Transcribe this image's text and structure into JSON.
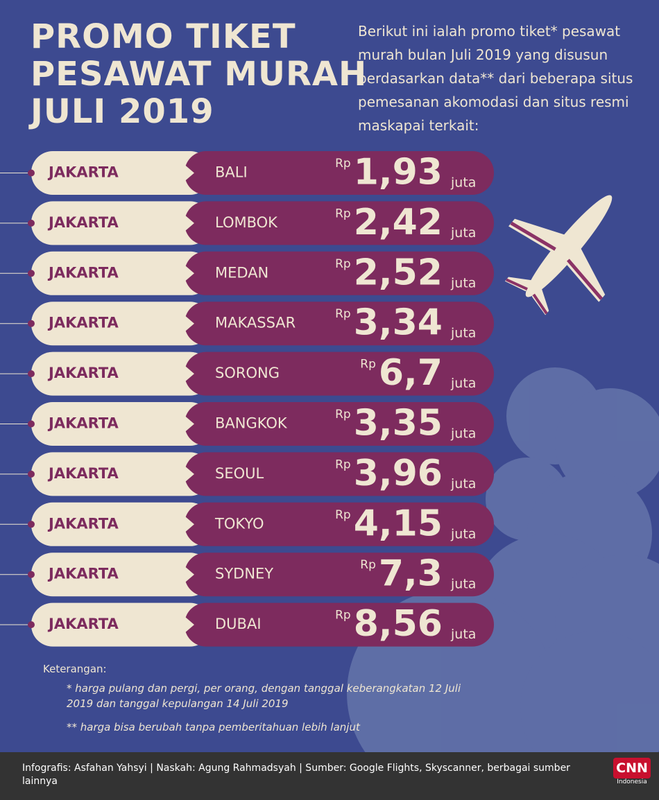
{
  "title": {
    "lines": [
      "PROMO TIKET",
      "PESAWAT MURAH",
      "JULI 2019"
    ]
  },
  "intro": "Berikut ini ialah promo tiket* pesawat murah bulan Juli 2019 yang disusun berdasarkan data** dari beberapa situs pemesanan akomodasi dan situs resmi maskapai terkait:",
  "currency": "Rp",
  "unit": "juta",
  "routes": [
    {
      "origin": "JAKARTA",
      "destination": "BALI",
      "price": "1,93"
    },
    {
      "origin": "JAKARTA",
      "destination": "LOMBOK",
      "price": "2,42"
    },
    {
      "origin": "JAKARTA",
      "destination": "MEDAN",
      "price": "2,52"
    },
    {
      "origin": "JAKARTA",
      "destination": "MAKASSAR",
      "price": "3,34"
    },
    {
      "origin": "JAKARTA",
      "destination": "SORONG",
      "price": "6,7"
    },
    {
      "origin": "JAKARTA",
      "destination": "BANGKOK",
      "price": "3,35"
    },
    {
      "origin": "JAKARTA",
      "destination": "SEOUL",
      "price": "3,96"
    },
    {
      "origin": "JAKARTA",
      "destination": "TOKYO",
      "price": "4,15"
    },
    {
      "origin": "JAKARTA",
      "destination": "SYDNEY",
      "price": "7,3"
    },
    {
      "origin": "JAKARTA",
      "destination": "DUBAI",
      "price": "8,56"
    }
  ],
  "notes": {
    "heading": "Keterangan:",
    "items": [
      "* harga pulang dan pergi, per orang, dengan tanggal keberangkatan 12 Juli 2019 dan tanggal kepulangan 14 Juli 2019",
      "** harga bisa berubah tanpa pemberitahuan lebih lanjut"
    ]
  },
  "footer": {
    "credits": "Infografis: Asfahan Yahsyi | Naskah: Agung Rahmadsyah | Sumber: Google Flights, Skyscanner, berbagai sumber lainnya",
    "logo": "CNN",
    "logo_sub": "Indonesia"
  }
}
